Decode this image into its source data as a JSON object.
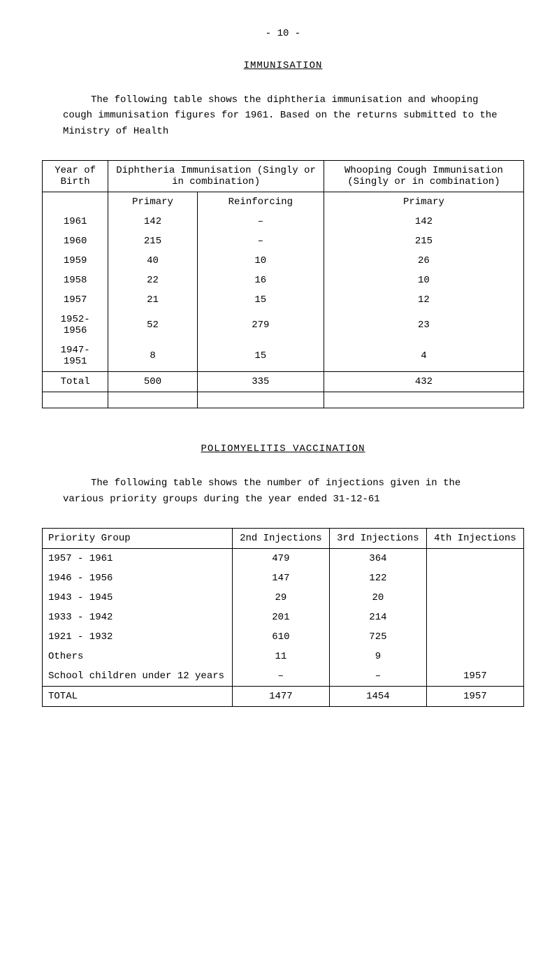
{
  "page_number": "- 10 -",
  "title1": "IMMUNISATION",
  "intro1": "The following table shows the diphtheria immunisation and whooping cough immunisation figures for 1961.   Based on the returns submitted to the Ministry of Health",
  "table1": {
    "col_year": "Year of Birth",
    "col_dip": "Diphtheria Immunisation (Singly or in combination)",
    "col_whoop": "Whooping Cough Immunisation (Singly or in combination)",
    "sub_primary": "Primary",
    "sub_reinforcing": "Reinforcing",
    "sub_primary2": "Primary",
    "rows": [
      {
        "y": "1961",
        "p": "142",
        "r": "–",
        "w": "142"
      },
      {
        "y": "1960",
        "p": "215",
        "r": "–",
        "w": "215"
      },
      {
        "y": "1959",
        "p": "40",
        "r": "10",
        "w": "26"
      },
      {
        "y": "1958",
        "p": "22",
        "r": "16",
        "w": "10"
      },
      {
        "y": "1957",
        "p": "21",
        "r": "15",
        "w": "12"
      },
      {
        "y": "1952- 1956",
        "p": "52",
        "r": "279",
        "w": "23"
      },
      {
        "y": "1947- 1951",
        "p": "8",
        "r": "15",
        "w": "4"
      }
    ],
    "total_label": "Total",
    "total": {
      "p": "500",
      "r": "335",
      "w": "432"
    }
  },
  "title2": "POLIOMYELITIS VACCINATION",
  "intro2": "The following table shows the number of injections given in the various priority groups during the year ended 31-12-61",
  "table2": {
    "col_group": "Priority Group",
    "col_2nd": "2nd Injections",
    "col_3rd": "3rd Injections",
    "col_4th": "4th Injections",
    "rows": [
      {
        "g": "1957 - 1961",
        "a": "479",
        "b": "364",
        "c": ""
      },
      {
        "g": "1946 - 1956",
        "a": "147",
        "b": "122",
        "c": ""
      },
      {
        "g": "1943 - 1945",
        "a": "29",
        "b": "20",
        "c": ""
      },
      {
        "g": "1933 - 1942",
        "a": "201",
        "b": "214",
        "c": ""
      },
      {
        "g": "1921 - 1932",
        "a": "610",
        "b": "725",
        "c": ""
      },
      {
        "g": "Others",
        "a": "11",
        "b": "9",
        "c": ""
      },
      {
        "g": "School children under 12 years",
        "a": "–",
        "b": "–",
        "c": "1957"
      }
    ],
    "total_label": "TOTAL",
    "total": {
      "a": "1477",
      "b": "1454",
      "c": "1957"
    }
  }
}
